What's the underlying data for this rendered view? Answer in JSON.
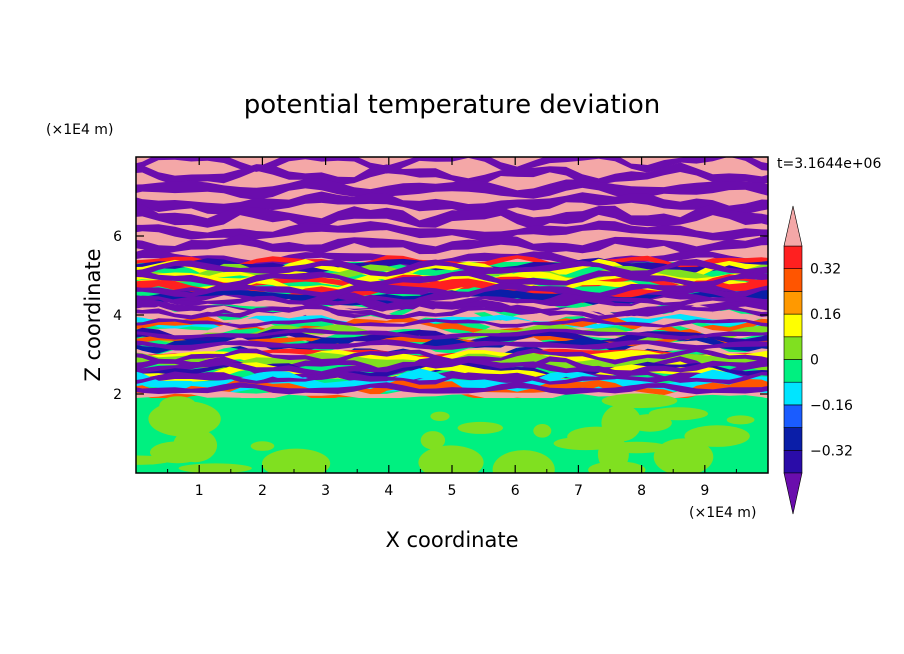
{
  "chart_data": {
    "type": "heatmap",
    "title": "potential temperature deviation",
    "xlabel": "X coordinate",
    "ylabel": "Z coordinate",
    "x_unit": "(×1E4 m)",
    "y_unit": "(×1E4 m)",
    "xlim": [
      0,
      10
    ],
    "ylim": [
      0,
      8
    ],
    "x_ticks": [
      "1",
      "2",
      "3",
      "4",
      "5",
      "6",
      "7",
      "8",
      "9"
    ],
    "y_ticks": [
      "2",
      "4",
      "6"
    ],
    "time_label": "t=3.1644e+06",
    "colorbar": {
      "levels": [
        -0.4,
        -0.32,
        -0.24,
        -0.16,
        -0.08,
        0,
        0.08,
        0.16,
        0.24,
        0.32,
        0.4
      ],
      "tick_labels": [
        "0.32",
        "0.16",
        "0",
        "−0.16",
        "−0.32"
      ],
      "tick_values": [
        0.32,
        0.16,
        0,
        -0.16,
        -0.32
      ],
      "colors": [
        "#6a0dad",
        "#2a0ca8",
        "#0a1ea8",
        "#1a5cff",
        "#00e5ff",
        "#00f080",
        "#80e020",
        "#ffff00",
        "#ff9900",
        "#ff5500",
        "#ff2020",
        "#f4a7a7"
      ],
      "extend": "both"
    },
    "grid": false
  }
}
